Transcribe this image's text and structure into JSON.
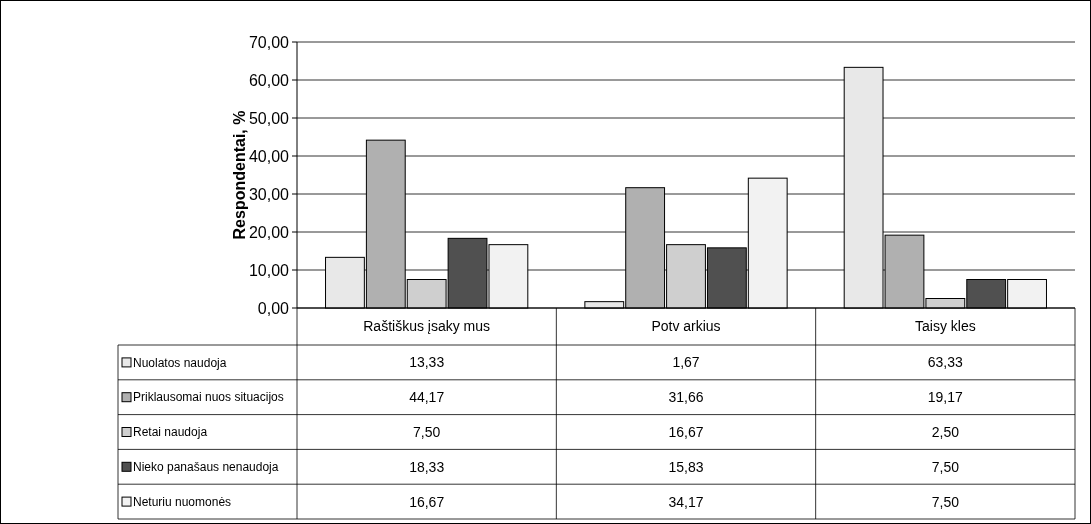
{
  "chart_data": {
    "type": "bar",
    "ylabel": "Respondentai, %",
    "categories": [
      "Raštiškus įsaky mus",
      "Potv arkius",
      "Taisy kles"
    ],
    "series": [
      {
        "name": "Nuolatos naudoja",
        "color": "#e8e8e8",
        "values": [
          13.33,
          1.67,
          63.33
        ],
        "value_labels": [
          "13,33",
          "1,67",
          "63,33"
        ]
      },
      {
        "name": "Priklausomai nuos situacijos",
        "color": "#b0b0b0",
        "values": [
          44.17,
          31.66,
          19.17
        ],
        "value_labels": [
          "44,17",
          "31,66",
          "19,17"
        ]
      },
      {
        "name": "Retai naudoja",
        "color": "#cfcfcf",
        "values": [
          7.5,
          16.67,
          2.5
        ],
        "value_labels": [
          "7,50",
          "16,67",
          "2,50"
        ]
      },
      {
        "name": "Nieko panašaus nenaudoja",
        "color": "#505050",
        "values": [
          18.33,
          15.83,
          7.5
        ],
        "value_labels": [
          "18,33",
          "15,83",
          "7,50"
        ]
      },
      {
        "name": "Neturiu nuomonės",
        "color": "#f2f2f2",
        "values": [
          16.67,
          34.17,
          7.5
        ],
        "value_labels": [
          "16,67",
          "34,17",
          "7,50"
        ]
      }
    ],
    "ylim": [
      0,
      70
    ],
    "yticks": [
      {
        "value": 0,
        "label": "0,00"
      },
      {
        "value": 10,
        "label": "10,00"
      },
      {
        "value": 20,
        "label": "20,00"
      },
      {
        "value": 30,
        "label": "30,00"
      },
      {
        "value": 40,
        "label": "40,00"
      },
      {
        "value": 50,
        "label": "50,00"
      },
      {
        "value": 60,
        "label": "60,00"
      },
      {
        "value": 70,
        "label": "70,00"
      }
    ],
    "grid": "y",
    "legend": "bottom"
  }
}
